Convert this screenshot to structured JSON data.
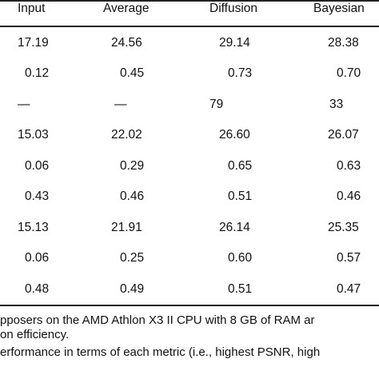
{
  "table": {
    "headers": [
      "Input",
      "Average",
      "Diffusion",
      "Bayesian"
    ],
    "rows": [
      [
        "17.19",
        "24.56",
        "29.14",
        "28.38"
      ],
      [
        "0.12",
        "0.45",
        "0.73",
        "0.70"
      ],
      [
        "—",
        "—",
        "79",
        "33"
      ],
      [
        "15.03",
        "22.02",
        "26.60",
        "26.07"
      ],
      [
        "0.06",
        "0.29",
        "0.65",
        "0.63"
      ],
      [
        "0.43",
        "0.46",
        "0.51",
        "0.46"
      ],
      [
        "15.13",
        "21.91",
        "26.14",
        "25.35"
      ],
      [
        "0.06",
        "0.25",
        "0.60",
        "0.57"
      ],
      [
        "0.48",
        "0.49",
        "0.51",
        "0.47"
      ]
    ]
  },
  "notes": [
    "pposers on the AMD Athlon X3 II CPU with 8 GB of RAM ar",
    "on efficiency.",
    "erformance in terms of each metric (i.e., highest PSNR, high"
  ]
}
